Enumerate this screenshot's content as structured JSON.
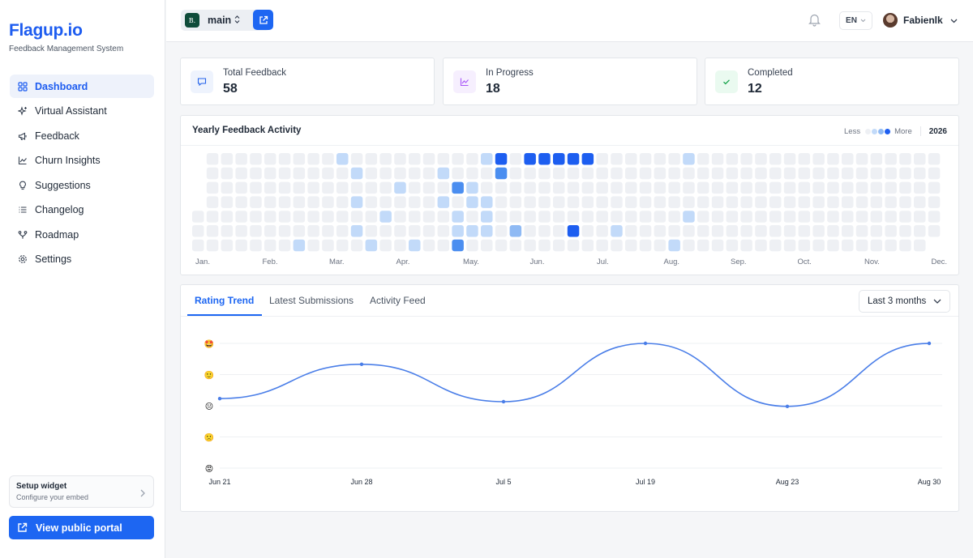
{
  "brand": {
    "name": "Flagup.io",
    "subtitle": "Feedback Management System"
  },
  "sidebar": {
    "items": [
      {
        "label": "Dashboard",
        "icon": "grid-icon",
        "active": true
      },
      {
        "label": "Virtual Assistant",
        "icon": "sparkles-icon"
      },
      {
        "label": "Feedback",
        "icon": "megaphone-icon"
      },
      {
        "label": "Churn Insights",
        "icon": "chart-line-icon"
      },
      {
        "label": "Suggestions",
        "icon": "lightbulb-icon"
      },
      {
        "label": "Changelog",
        "icon": "list-icon"
      },
      {
        "label": "Roadmap",
        "icon": "route-icon"
      },
      {
        "label": "Settings",
        "icon": "gear-icon"
      }
    ],
    "setup": {
      "title": "Setup widget",
      "subtitle": "Configure your embed"
    },
    "portal_button": "View public portal"
  },
  "header": {
    "workspace_badge": "B.",
    "workspace_name": "main",
    "language": "EN",
    "user_name": "Fabienlk"
  },
  "stats": [
    {
      "label": "Total Feedback",
      "value": "58",
      "icon": "message-icon",
      "color": "#2563eb",
      "bg": "#eef3fd"
    },
    {
      "label": "In Progress",
      "value": "18",
      "icon": "trend-icon",
      "color": "#a855f7",
      "bg": "#f6effe"
    },
    {
      "label": "Completed",
      "value": "12",
      "icon": "check-icon",
      "color": "#16a34a",
      "bg": "#eafaf0"
    }
  ],
  "heatmap": {
    "title": "Yearly Feedback Activity",
    "legend_less": "Less",
    "legend_more": "More",
    "year": "2026",
    "months": [
      "Jan.",
      "Feb.",
      "Mar.",
      "Apr.",
      "May.",
      "Jun.",
      "Jul.",
      "Aug.",
      "Sep.",
      "Oct.",
      "Nov.",
      "Dec."
    ],
    "level_colors": [
      "#eef0f4",
      "#c2daf9",
      "#8fbaf4",
      "#4b8ef0",
      "#1d5ef0"
    ],
    "cells": [
      [
        10,
        0,
        1
      ],
      [
        20,
        0,
        1
      ],
      [
        21,
        0,
        4
      ],
      [
        23,
        0,
        4
      ],
      [
        24,
        0,
        4
      ],
      [
        25,
        0,
        4
      ],
      [
        26,
        0,
        4
      ],
      [
        27,
        0,
        4
      ],
      [
        34,
        0,
        1
      ],
      [
        11,
        1,
        1
      ],
      [
        17,
        1,
        1
      ],
      [
        21,
        1,
        3
      ],
      [
        14,
        2,
        1
      ],
      [
        18,
        2,
        3
      ],
      [
        19,
        2,
        1
      ],
      [
        11,
        3,
        1
      ],
      [
        17,
        3,
        1
      ],
      [
        19,
        3,
        1
      ],
      [
        20,
        3,
        1
      ],
      [
        13,
        4,
        1
      ],
      [
        18,
        4,
        1
      ],
      [
        20,
        4,
        1
      ],
      [
        34,
        4,
        1
      ],
      [
        11,
        5,
        1
      ],
      [
        18,
        5,
        1
      ],
      [
        19,
        5,
        1
      ],
      [
        20,
        5,
        1
      ],
      [
        22,
        5,
        2
      ],
      [
        26,
        5,
        4
      ],
      [
        29,
        5,
        1
      ],
      [
        7,
        6,
        1
      ],
      [
        12,
        6,
        1
      ],
      [
        15,
        6,
        1
      ],
      [
        18,
        6,
        3
      ],
      [
        33,
        6,
        1
      ]
    ]
  },
  "trend": {
    "tabs": [
      "Rating Trend",
      "Latest Submissions",
      "Activity Feed"
    ],
    "active_tab": 0,
    "range": "Last 3 months"
  },
  "chart_data": {
    "type": "line",
    "title": "",
    "xlabel": "",
    "ylabel": "",
    "x": [
      "Jun 21",
      "Jun 28",
      "Jul 5",
      "Jul 19",
      "Aug 23",
      "Aug 30"
    ],
    "series": [
      {
        "values": [
          3.23,
          4.33,
          3.13,
          5.0,
          2.98,
          5.0
        ]
      }
    ],
    "ylim": [
      1,
      5
    ],
    "y_ticks": [
      {
        "value": 5,
        "emoji": "🤩"
      },
      {
        "value": 4,
        "emoji": "🙂"
      },
      {
        "value": 3,
        "emoji": "😐"
      },
      {
        "value": 2,
        "emoji": "🙁"
      },
      {
        "value": 1,
        "emoji": "😡"
      }
    ],
    "line_color": "#4a7ee8",
    "grid": true
  }
}
